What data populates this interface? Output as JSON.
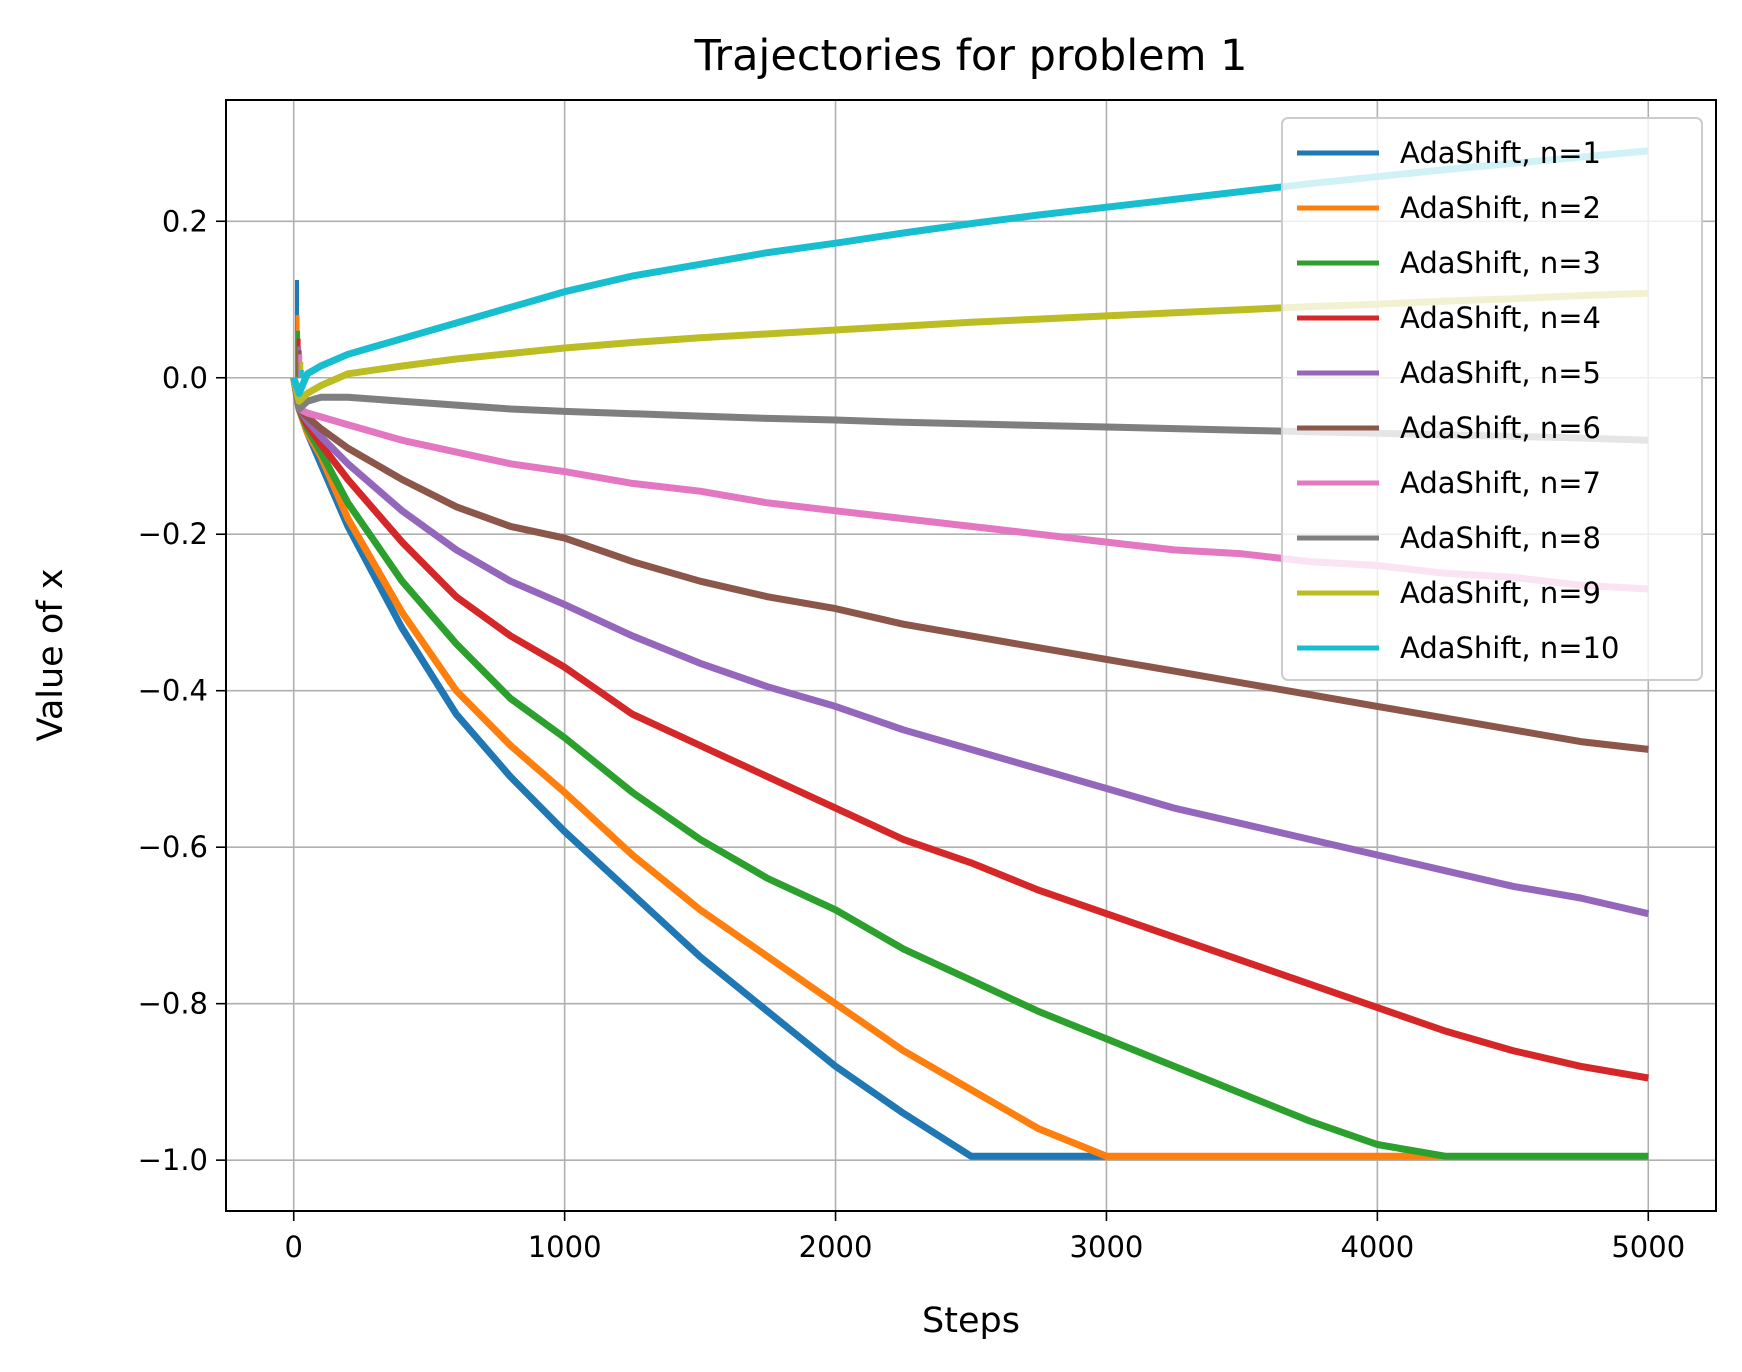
{
  "chart_data": {
    "type": "line",
    "title": "Trajectories for problem 1",
    "xlabel": "Steps",
    "ylabel": "Value of x",
    "xlim": [
      -250,
      5250
    ],
    "ylim": [
      -1.065,
      0.355
    ],
    "xticks": [
      0,
      1000,
      2000,
      3000,
      4000,
      5000
    ],
    "xtick_labels": [
      "0",
      "1000",
      "2000",
      "3000",
      "4000",
      "5000"
    ],
    "yticks": [
      0.2,
      0.0,
      -0.2,
      -0.4,
      -0.6,
      -0.8,
      -1.0
    ],
    "ytick_labels": [
      "0.2",
      "0.0",
      "−0.2",
      "−0.4",
      "−0.6",
      "−0.8",
      "−1.0"
    ],
    "grid": true,
    "legend_position": "top-right",
    "x": [
      0,
      20,
      50,
      100,
      200,
      400,
      600,
      800,
      1000,
      1250,
      1500,
      1750,
      2000,
      2250,
      2500,
      2750,
      3000,
      3250,
      3500,
      3750,
      4000,
      4250,
      4500,
      4750,
      5000
    ],
    "series": [
      {
        "name": "AdaShift, n=1",
        "color": "#1f77b4",
        "spike": 0.125,
        "values": [
          0.0,
          -0.04,
          -0.07,
          -0.11,
          -0.19,
          -0.32,
          -0.43,
          -0.51,
          -0.58,
          -0.66,
          -0.74,
          -0.81,
          -0.88,
          -0.94,
          -0.995,
          -0.995,
          -0.995,
          null,
          null,
          null,
          null,
          null,
          null,
          null,
          null
        ]
      },
      {
        "name": "AdaShift, n=2",
        "color": "#ff7f0e",
        "spike": 0.08,
        "values": [
          0.0,
          -0.04,
          -0.07,
          -0.1,
          -0.18,
          -0.3,
          -0.4,
          -0.47,
          -0.53,
          -0.61,
          -0.68,
          -0.74,
          -0.8,
          -0.86,
          -0.91,
          -0.96,
          -0.995,
          -0.995,
          -0.995,
          -0.995,
          -0.995,
          -0.995,
          null,
          null,
          null
        ]
      },
      {
        "name": "AdaShift, n=3",
        "color": "#2ca02c",
        "spike": 0.06,
        "values": [
          0.0,
          -0.04,
          -0.065,
          -0.095,
          -0.16,
          -0.26,
          -0.34,
          -0.41,
          -0.46,
          -0.53,
          -0.59,
          -0.64,
          -0.68,
          -0.73,
          -0.77,
          -0.81,
          -0.845,
          -0.88,
          -0.915,
          -0.95,
          -0.98,
          -0.995,
          -0.995,
          -0.995,
          -0.995
        ]
      },
      {
        "name": "AdaShift, n=4",
        "color": "#d62728",
        "spike": 0.05,
        "values": [
          0.0,
          -0.04,
          -0.06,
          -0.085,
          -0.13,
          -0.21,
          -0.28,
          -0.33,
          -0.37,
          -0.43,
          -0.47,
          -0.51,
          -0.55,
          -0.59,
          -0.62,
          -0.655,
          -0.685,
          -0.715,
          -0.745,
          -0.775,
          -0.805,
          -0.835,
          -0.86,
          -0.88,
          -0.895
        ]
      },
      {
        "name": "AdaShift, n=5",
        "color": "#9467bd",
        "spike": 0.04,
        "values": [
          0.0,
          -0.04,
          -0.055,
          -0.075,
          -0.11,
          -0.17,
          -0.22,
          -0.26,
          -0.29,
          -0.33,
          -0.365,
          -0.395,
          -0.42,
          -0.45,
          -0.475,
          -0.5,
          -0.525,
          -0.55,
          -0.57,
          -0.59,
          -0.61,
          -0.63,
          -0.65,
          -0.665,
          -0.685
        ]
      },
      {
        "name": "AdaShift, n=6",
        "color": "#8c564b",
        "spike": 0.035,
        "values": [
          0.0,
          -0.04,
          -0.05,
          -0.065,
          -0.09,
          -0.13,
          -0.165,
          -0.19,
          -0.205,
          -0.235,
          -0.26,
          -0.28,
          -0.295,
          -0.315,
          -0.33,
          -0.345,
          -0.36,
          -0.375,
          -0.39,
          -0.405,
          -0.42,
          -0.435,
          -0.45,
          -0.465,
          -0.475
        ]
      },
      {
        "name": "AdaShift, n=7",
        "color": "#e377c2",
        "spike": 0.03,
        "values": [
          0.0,
          -0.04,
          -0.045,
          -0.05,
          -0.06,
          -0.08,
          -0.095,
          -0.11,
          -0.12,
          -0.135,
          -0.145,
          -0.16,
          -0.17,
          -0.18,
          -0.19,
          -0.2,
          -0.21,
          -0.22,
          -0.225,
          -0.235,
          -0.24,
          -0.25,
          -0.255,
          -0.265,
          -0.27
        ]
      },
      {
        "name": "AdaShift, n=8",
        "color": "#7f7f7f",
        "spike": 0.02,
        "values": [
          0.0,
          -0.04,
          -0.03,
          -0.025,
          -0.025,
          -0.03,
          -0.035,
          -0.04,
          -0.043,
          -0.046,
          -0.049,
          -0.052,
          -0.054,
          -0.057,
          -0.059,
          -0.061,
          -0.063,
          -0.065,
          -0.067,
          -0.069,
          -0.071,
          -0.073,
          -0.075,
          -0.077,
          -0.08
        ]
      },
      {
        "name": "AdaShift, n=9",
        "color": "#bcbd22",
        "spike": 0.02,
        "values": [
          0.0,
          -0.03,
          -0.02,
          -0.01,
          0.005,
          0.015,
          0.024,
          0.031,
          0.038,
          0.045,
          0.051,
          0.056,
          0.061,
          0.066,
          0.071,
          0.075,
          0.079,
          0.083,
          0.087,
          0.091,
          0.094,
          0.098,
          0.101,
          0.105,
          0.108
        ]
      },
      {
        "name": "AdaShift, n=10",
        "color": "#17becf",
        "spike": 0.01,
        "values": [
          0.0,
          -0.02,
          0.005,
          0.015,
          0.03,
          0.05,
          0.07,
          0.09,
          0.11,
          0.13,
          0.145,
          0.16,
          0.172,
          0.185,
          0.197,
          0.208,
          0.218,
          0.228,
          0.238,
          0.248,
          0.257,
          0.266,
          0.274,
          0.282,
          0.29
        ]
      }
    ]
  }
}
